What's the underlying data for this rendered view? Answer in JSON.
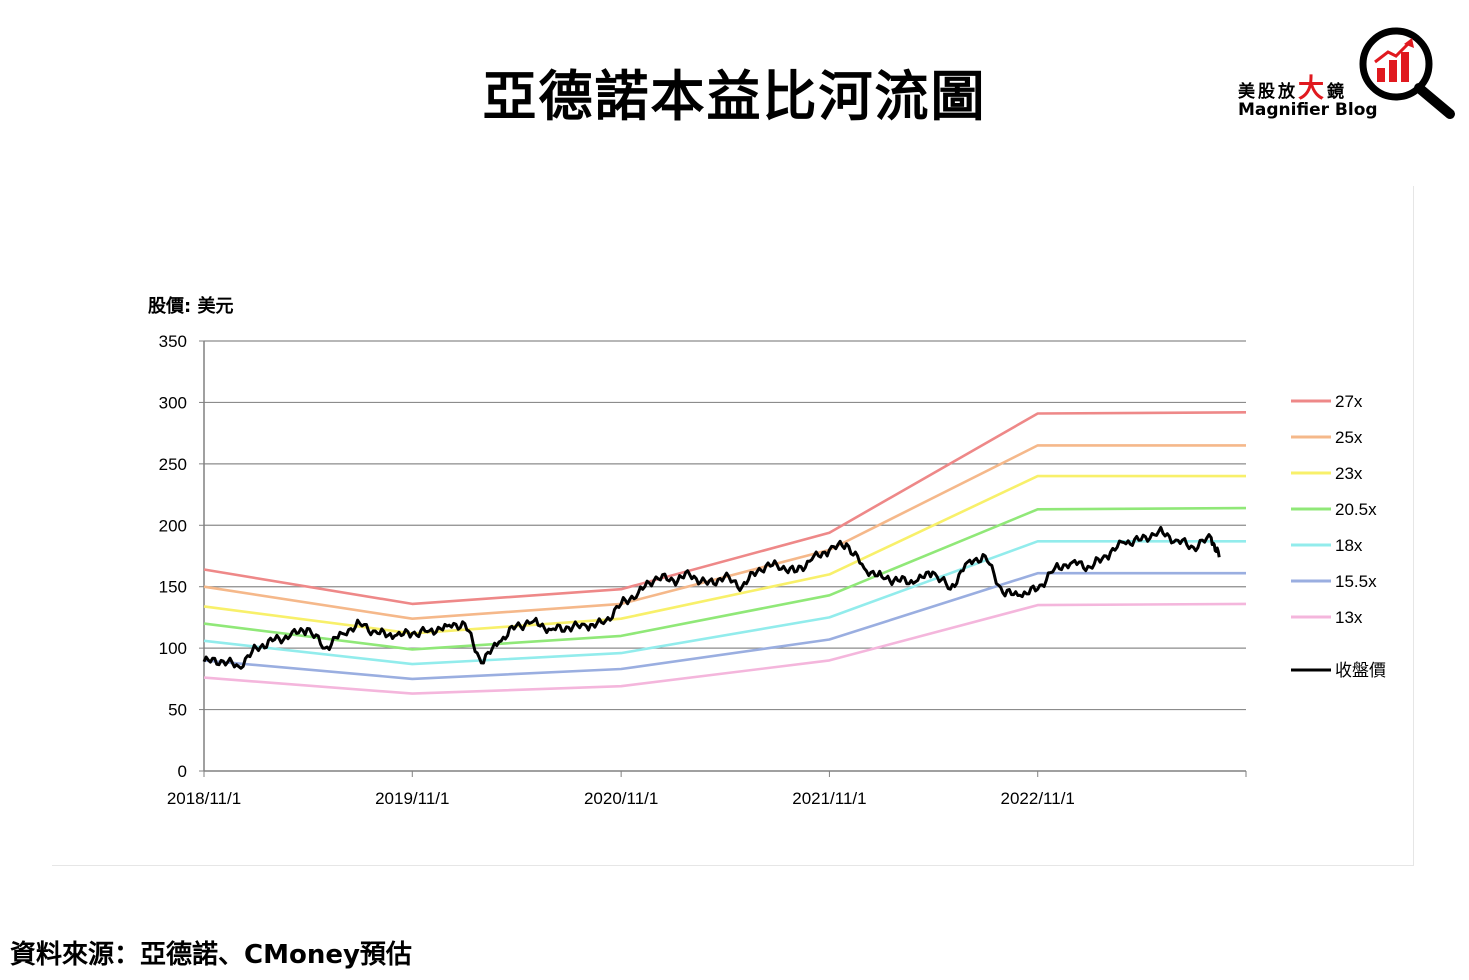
{
  "page": {
    "title": "亞德諾本益比河流圖",
    "source": "資料來源：亞德諾、CMoney預估",
    "logo": {
      "cn_prefix": "美股放",
      "cn_big": "大",
      "cn_suffix": "鏡",
      "en": "Magnifier Blog",
      "icon": "magnifier-bar-chart-icon",
      "accent": "#e0191f"
    }
  },
  "chart_data": {
    "type": "line",
    "title": "亞德諾本益比河流圖",
    "ylabel": "股價: 美元",
    "xlabel": "",
    "ylim": [
      0,
      350
    ],
    "yticks": [
      0,
      50,
      100,
      150,
      200,
      250,
      300,
      350
    ],
    "xlim": [
      "2018-11-01",
      "2023-11-01"
    ],
    "xticks": [
      "2018/11/1",
      "2019/11/1",
      "2020/11/1",
      "2021/11/1",
      "2022/11/1"
    ],
    "grid": true,
    "legend_position": "right",
    "series": [
      {
        "name": "27x",
        "color": "#ee8888",
        "points": [
          [
            "2018-11-01",
            164
          ],
          [
            "2019-11-01",
            136
          ],
          [
            "2020-11-01",
            148
          ],
          [
            "2021-11-01",
            194
          ],
          [
            "2022-11-01",
            291
          ],
          [
            "2023-11-01",
            292
          ]
        ]
      },
      {
        "name": "25x",
        "color": "#f5b88a",
        "points": [
          [
            "2018-11-01",
            150
          ],
          [
            "2019-11-01",
            124
          ],
          [
            "2020-11-01",
            136
          ],
          [
            "2021-11-01",
            180
          ],
          [
            "2022-11-01",
            265
          ],
          [
            "2023-11-01",
            265
          ]
        ]
      },
      {
        "name": "23x",
        "color": "#f8f06a",
        "points": [
          [
            "2018-11-01",
            134
          ],
          [
            "2019-11-01",
            112
          ],
          [
            "2020-11-01",
            124
          ],
          [
            "2021-11-01",
            160
          ],
          [
            "2022-11-01",
            240
          ],
          [
            "2023-11-01",
            240
          ]
        ]
      },
      {
        "name": "20.5x",
        "color": "#90e878",
        "points": [
          [
            "2018-11-01",
            120
          ],
          [
            "2019-11-01",
            99
          ],
          [
            "2020-11-01",
            110
          ],
          [
            "2021-11-01",
            143
          ],
          [
            "2022-11-01",
            213
          ],
          [
            "2023-11-01",
            214
          ]
        ]
      },
      {
        "name": "18x",
        "color": "#92ecec",
        "points": [
          [
            "2018-11-01",
            106
          ],
          [
            "2019-11-01",
            87
          ],
          [
            "2020-11-01",
            96
          ],
          [
            "2021-11-01",
            125
          ],
          [
            "2022-11-01",
            187
          ],
          [
            "2023-11-01",
            187
          ]
        ]
      },
      {
        "name": "15.5x",
        "color": "#9aaee0",
        "points": [
          [
            "2018-11-01",
            90
          ],
          [
            "2019-11-01",
            75
          ],
          [
            "2020-11-01",
            83
          ],
          [
            "2021-11-01",
            107
          ],
          [
            "2022-11-01",
            161
          ],
          [
            "2023-11-01",
            161
          ]
        ]
      },
      {
        "name": "13x",
        "color": "#f4b6dc",
        "points": [
          [
            "2018-11-01",
            76
          ],
          [
            "2019-11-01",
            63
          ],
          [
            "2020-11-01",
            69
          ],
          [
            "2021-11-01",
            90
          ],
          [
            "2022-11-01",
            135
          ],
          [
            "2023-11-01",
            136
          ]
        ]
      },
      {
        "name": "收盤價",
        "color": "#000000",
        "points": [
          [
            "2018-11-01",
            89
          ],
          [
            "2018-12-01",
            90
          ],
          [
            "2019-01-01",
            85
          ],
          [
            "2019-02-01",
            100
          ],
          [
            "2019-03-01",
            106
          ],
          [
            "2019-04-01",
            110
          ],
          [
            "2019-05-01",
            116
          ],
          [
            "2019-06-01",
            100
          ],
          [
            "2019-07-01",
            112
          ],
          [
            "2019-08-01",
            120
          ],
          [
            "2019-09-01",
            112
          ],
          [
            "2019-10-01",
            110
          ],
          [
            "2019-11-01",
            112
          ],
          [
            "2019-12-01",
            114
          ],
          [
            "2020-01-01",
            118
          ],
          [
            "2020-02-01",
            120
          ],
          [
            "2020-03-01",
            88
          ],
          [
            "2020-04-01",
            105
          ],
          [
            "2020-05-01",
            118
          ],
          [
            "2020-06-01",
            122
          ],
          [
            "2020-07-01",
            115
          ],
          [
            "2020-08-01",
            117
          ],
          [
            "2020-09-01",
            118
          ],
          [
            "2020-10-01",
            120
          ],
          [
            "2020-11-01",
            136
          ],
          [
            "2020-12-01",
            145
          ],
          [
            "2021-01-01",
            158
          ],
          [
            "2021-02-01",
            155
          ],
          [
            "2021-03-01",
            160
          ],
          [
            "2021-04-01",
            152
          ],
          [
            "2021-05-01",
            158
          ],
          [
            "2021-06-01",
            150
          ],
          [
            "2021-07-01",
            165
          ],
          [
            "2021-08-01",
            168
          ],
          [
            "2021-09-01",
            162
          ],
          [
            "2021-10-01",
            172
          ],
          [
            "2021-11-01",
            180
          ],
          [
            "2021-12-01",
            185
          ],
          [
            "2022-01-01",
            165
          ],
          [
            "2022-02-01",
            158
          ],
          [
            "2022-03-01",
            155
          ],
          [
            "2022-04-01",
            154
          ],
          [
            "2022-05-01",
            162
          ],
          [
            "2022-06-01",
            148
          ],
          [
            "2022-07-01",
            170
          ],
          [
            "2022-08-01",
            175
          ],
          [
            "2022-09-01",
            145
          ],
          [
            "2022-10-01",
            143
          ],
          [
            "2022-11-01",
            148
          ],
          [
            "2022-12-01",
            165
          ],
          [
            "2023-01-01",
            170
          ],
          [
            "2023-02-01",
            166
          ],
          [
            "2023-03-01",
            175
          ],
          [
            "2023-04-01",
            186
          ],
          [
            "2023-05-01",
            188
          ],
          [
            "2023-06-01",
            195
          ],
          [
            "2023-07-01",
            188
          ],
          [
            "2023-08-01",
            182
          ],
          [
            "2023-09-01",
            190
          ],
          [
            "2023-09-15",
            174
          ]
        ]
      }
    ]
  }
}
